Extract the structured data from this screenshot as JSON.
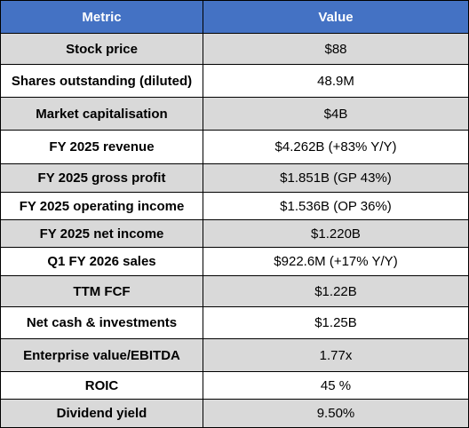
{
  "header": {
    "metric": "Metric",
    "value": "Value"
  },
  "rows": [
    {
      "metric": "Stock price",
      "value": "$88"
    },
    {
      "metric": "Shares outstanding (diluted)",
      "value": "48.9M"
    },
    {
      "metric": "Market capitalisation",
      "value": "$4B"
    },
    {
      "metric": "FY  2025 revenue",
      "value": "$4.262B (+83% Y/Y)"
    },
    {
      "metric": "FY  2025 gross profit",
      "value": "$1.851B (GP 43%)"
    },
    {
      "metric": "FY  2025 operating income",
      "value": "$1.536B (OP 36%)"
    },
    {
      "metric": "FY  2025 net income",
      "value": "$1.220B"
    },
    {
      "metric": "Q1 FY  2026 sales",
      "value": "$922.6M (+17% Y/Y)"
    },
    {
      "metric": "TTM FCF",
      "value": "$1.22B"
    },
    {
      "metric": "Net cash & investments",
      "value": "$1.25B"
    },
    {
      "metric": "Enterprise value/EBITDA",
      "value": "1.77x"
    },
    {
      "metric": "ROIC",
      "value": "45 %"
    },
    {
      "metric": "Dividend yield",
      "value": "9.50%"
    }
  ],
  "colors": {
    "header_bg": "#4472c4",
    "header_text": "#ffffff",
    "band": "#d9d9d9",
    "alt": "#ffffff"
  }
}
